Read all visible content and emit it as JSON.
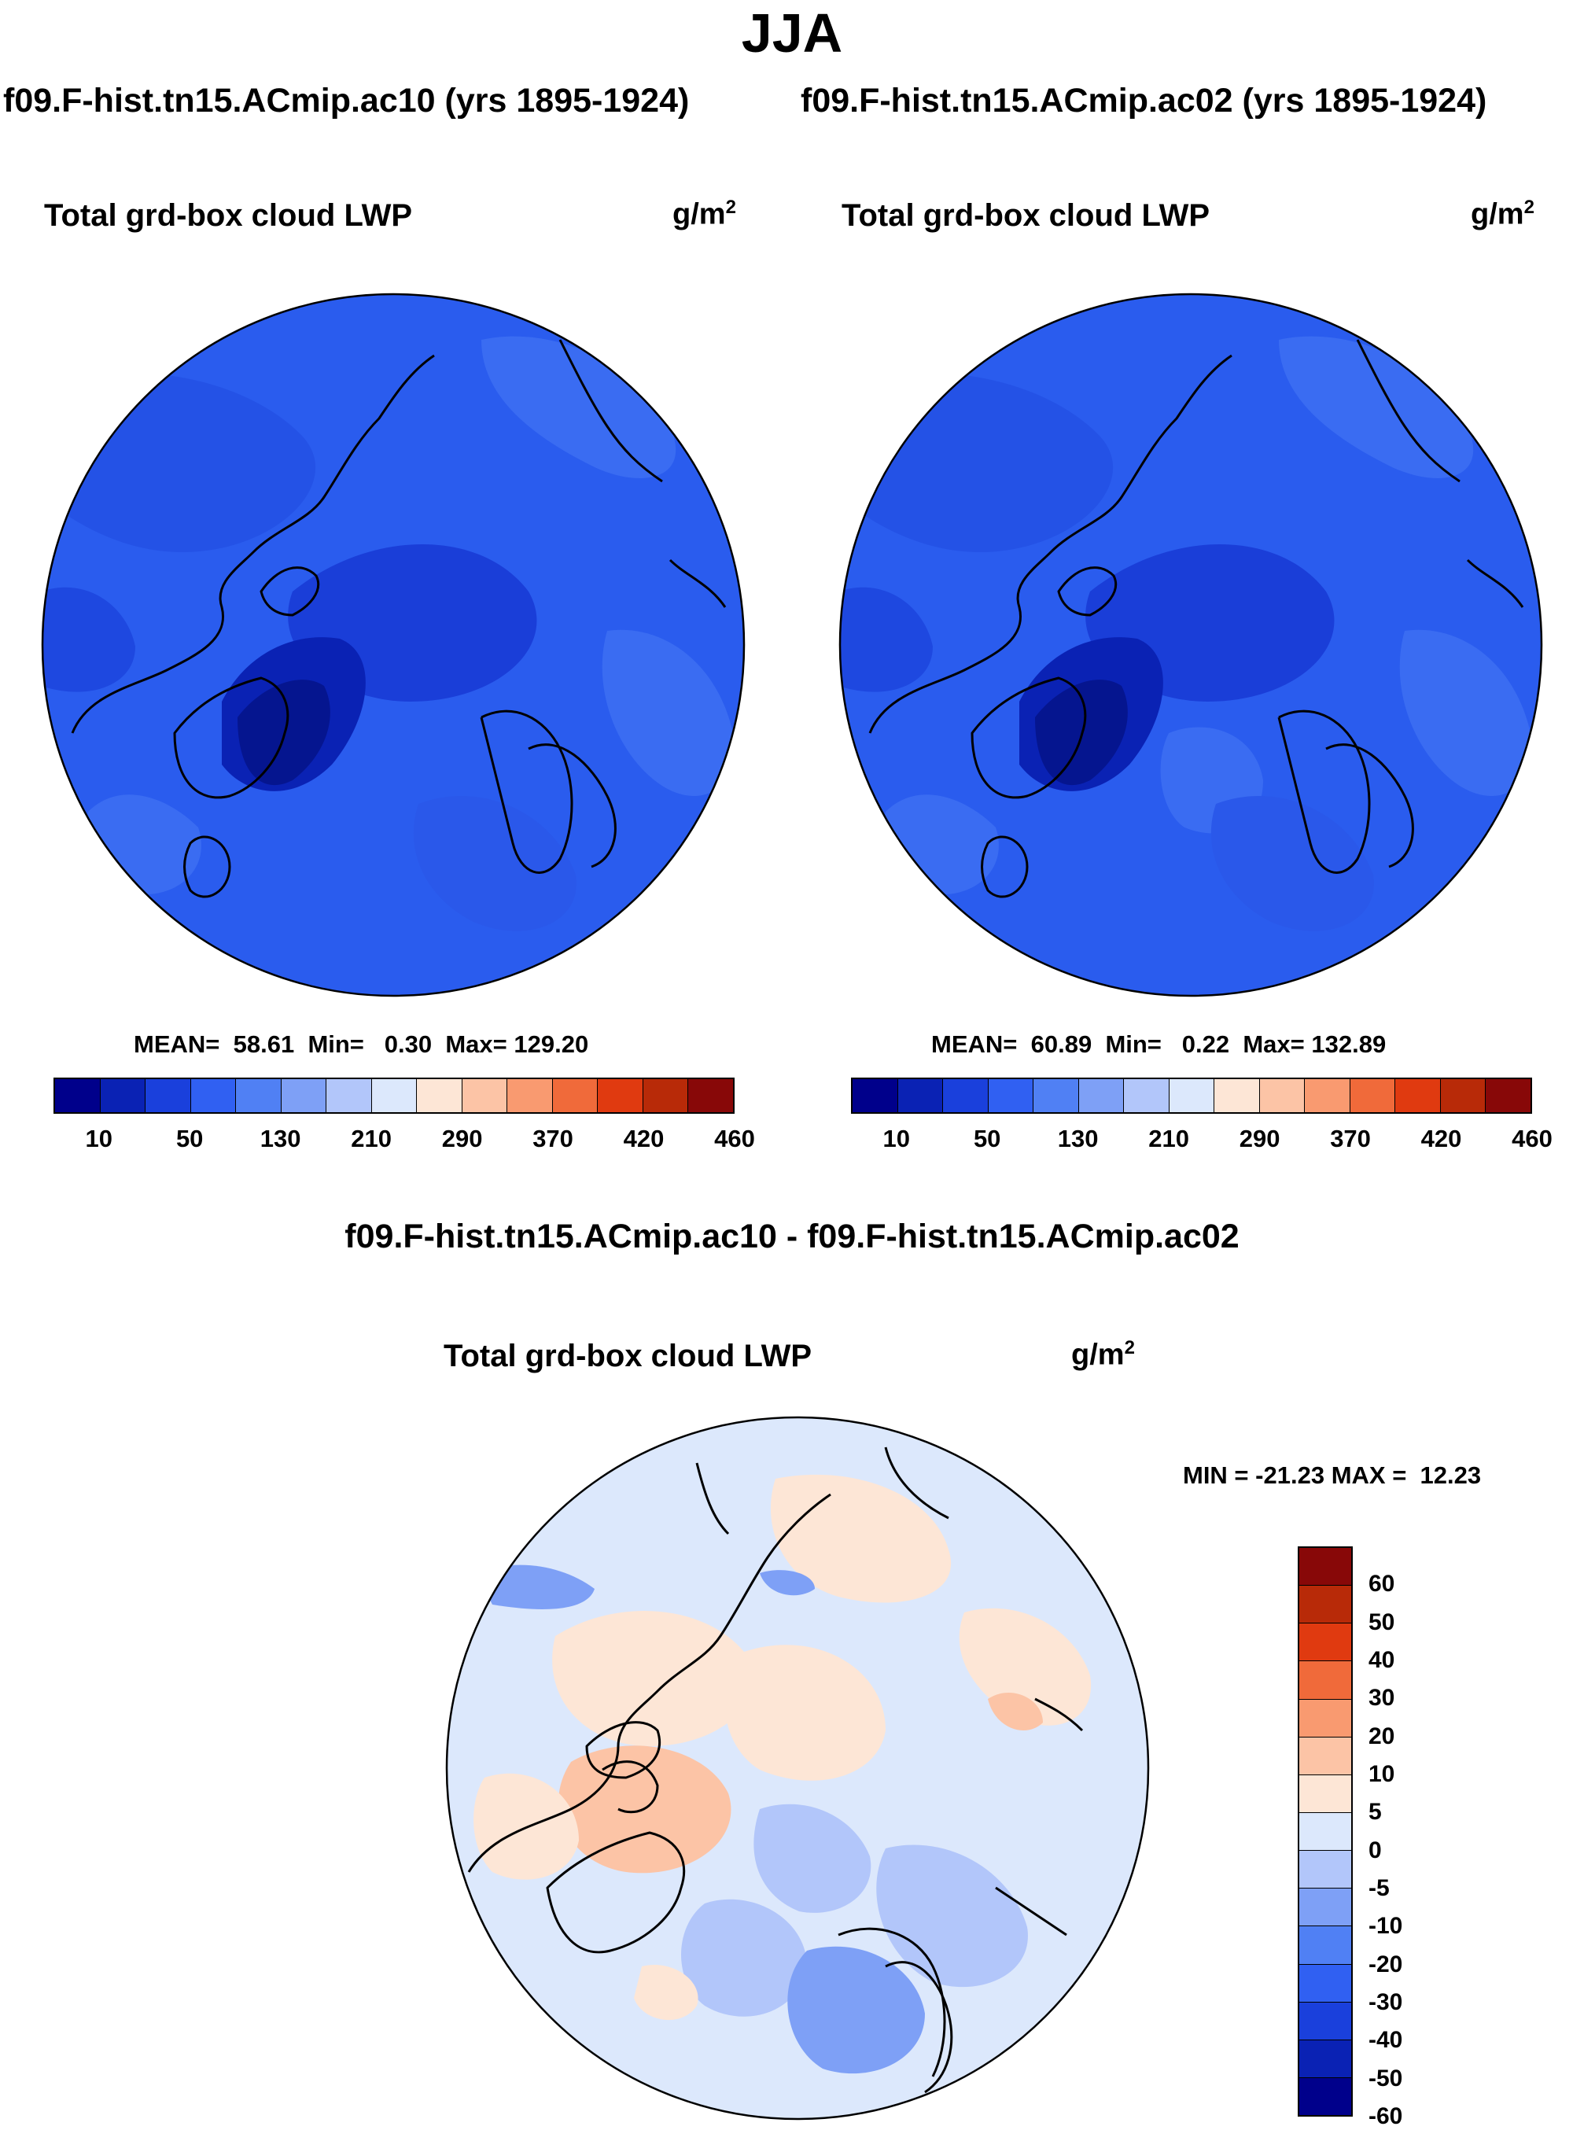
{
  "title": "JJA",
  "panels": [
    {
      "case_title": "f09.F-hist.tn15.ACmip.ac10 (yrs 1895-1924)",
      "variable": "Total grd-box cloud LWP",
      "units_base": "g/m",
      "units_exp": "2",
      "stats_mean_label": "MEAN=",
      "stats_mean": "58.61",
      "stats_min_label": "Min=",
      "stats_min": "0.30",
      "stats_max_label": "Max=",
      "stats_max": "129.20"
    },
    {
      "case_title": "f09.F-hist.tn15.ACmip.ac02 (yrs 1895-1924)",
      "variable": "Total grd-box cloud LWP",
      "units_base": "g/m",
      "units_exp": "2",
      "stats_mean_label": "MEAN=",
      "stats_mean": "60.89",
      "stats_min_label": "Min=",
      "stats_min": "0.22",
      "stats_max_label": "Max=",
      "stats_max": "132.89"
    }
  ],
  "diff": {
    "title": "f09.F-hist.tn15.ACmip.ac10 - f09.F-hist.tn15.ACmip.ac02",
    "variable": "Total grd-box cloud LWP",
    "units_base": "g/m",
    "units_exp": "2",
    "min_label": "MIN =",
    "min": "-21.23",
    "max_label": "MAX =",
    "max": "12.23"
  },
  "colorbar_abs": {
    "colors": [
      "#00008b",
      "#0a22b4",
      "#1a40dc",
      "#3060f2",
      "#5080f4",
      "#7ea0f6",
      "#b2c6fa",
      "#dce8fc",
      "#fde6d6",
      "#fcc4a6",
      "#f99a70",
      "#f06a3a",
      "#e03a10",
      "#b82a08",
      "#880808"
    ],
    "labels": [
      "10",
      "50",
      "130",
      "210",
      "290",
      "370",
      "420",
      "460"
    ]
  },
  "colorbar_diff": {
    "colors": [
      "#880808",
      "#b82a08",
      "#e03a10",
      "#f06a3a",
      "#f99a70",
      "#fcc4a6",
      "#fde6d6",
      "#dce8fc",
      "#b2c6fa",
      "#7ea0f6",
      "#5080f4",
      "#3060f2",
      "#1a40dc",
      "#0a22b4",
      "#00008b"
    ],
    "labels": [
      "60",
      "50",
      "40",
      "30",
      "20",
      "10",
      "5",
      "0",
      "-5",
      "-10",
      "-20",
      "-30",
      "-40",
      "-50",
      "-60"
    ]
  }
}
